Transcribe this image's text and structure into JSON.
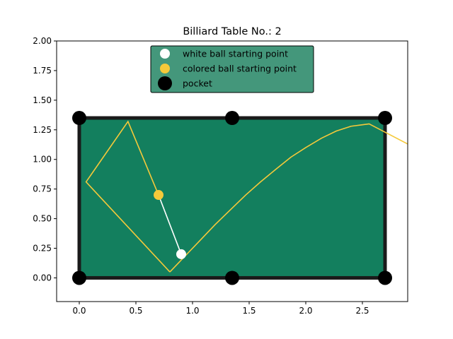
{
  "chart_data": {
    "type": "scatter",
    "title": "Billiard Table No.: 2",
    "xlabel": "",
    "ylabel": "",
    "xlim": [
      -0.2,
      2.9
    ],
    "ylim": [
      -0.2,
      2.0
    ],
    "xticks": [
      "0.0",
      "0.5",
      "1.0",
      "1.5",
      "2.0",
      "2.5"
    ],
    "xtick_values": [
      0,
      0.5,
      1.0,
      1.5,
      2.0,
      2.5
    ],
    "yticks": [
      "0.00",
      "0.25",
      "0.50",
      "0.75",
      "1.00",
      "1.25",
      "1.50",
      "1.75",
      "2.00"
    ],
    "ytick_values": [
      0,
      0.25,
      0.5,
      0.75,
      1.0,
      1.25,
      1.5,
      1.75,
      2.0
    ],
    "grid": false,
    "legend_position": "top-center",
    "table": {
      "x": [
        0,
        2.7
      ],
      "y": [
        0,
        1.35
      ],
      "felt_color": "#137f5e",
      "rail_color": "#1a1a1a"
    },
    "pockets": {
      "name": "pocket",
      "color": "#000000",
      "points": [
        [
          0,
          0
        ],
        [
          1.35,
          0
        ],
        [
          2.7,
          0
        ],
        [
          0,
          1.35
        ],
        [
          1.35,
          1.35
        ],
        [
          2.7,
          1.35
        ]
      ]
    },
    "white_ball": {
      "name": "white ball starting point",
      "color": "#ffffff",
      "x": 0.9,
      "y": 0.2
    },
    "colored_ball": {
      "name": "colored ball starting point",
      "color": "#f5c93a",
      "x": 0.7,
      "y": 0.7
    },
    "white_path": {
      "color": "#ffffff",
      "points": [
        [
          0.9,
          0.2
        ],
        [
          0.7,
          0.7
        ]
      ]
    },
    "colored_path": {
      "color": "#f5c93a",
      "points": [
        [
          0.7,
          0.7
        ],
        [
          0.43,
          1.32
        ],
        [
          0.06,
          0.81
        ],
        [
          0.8,
          0.05
        ]
      ],
      "curve": [
        [
          0.8,
          0.05
        ],
        [
          0.93,
          0.18
        ],
        [
          1.07,
          0.32
        ],
        [
          1.2,
          0.45
        ],
        [
          1.34,
          0.58
        ],
        [
          1.47,
          0.7
        ],
        [
          1.6,
          0.81
        ],
        [
          1.74,
          0.92
        ],
        [
          1.87,
          1.02
        ],
        [
          2.0,
          1.1
        ],
        [
          2.14,
          1.18
        ],
        [
          2.27,
          1.24
        ],
        [
          2.4,
          1.28
        ],
        [
          2.56,
          1.3
        ],
        [
          2.9,
          1.13
        ]
      ]
    }
  },
  "legend": {
    "background": "#44977b",
    "items": [
      {
        "label": "white ball starting point",
        "color": "#ffffff"
      },
      {
        "label": "colored ball starting point",
        "color": "#f5c93a"
      },
      {
        "label": "pocket",
        "color": "#000000"
      }
    ]
  }
}
